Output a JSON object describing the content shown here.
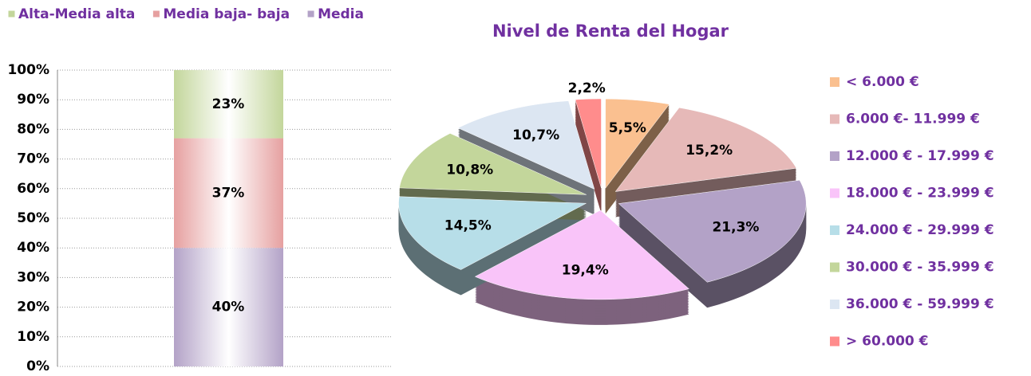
{
  "chart_data": [
    {
      "type": "stacked_bar",
      "series": [
        {
          "name": "Alta-Media alta",
          "color": "#c3d69b",
          "values": [
            23
          ],
          "value_labels": [
            "23%"
          ]
        },
        {
          "name": "Media baja- baja",
          "color": "#e6a0a0",
          "values": [
            37
          ],
          "value_labels": [
            "37%"
          ]
        },
        {
          "name": "Media",
          "color": "#b3a2c7",
          "values": [
            40
          ],
          "value_labels": [
            "40%"
          ]
        }
      ],
      "ylim": [
        0,
        100
      ],
      "yticks": [
        {
          "value": 0,
          "label": "0%"
        },
        {
          "value": 10,
          "label": "10%"
        },
        {
          "value": 20,
          "label": "20%"
        },
        {
          "value": 30,
          "label": "30%"
        },
        {
          "value": 40,
          "label": "40%"
        },
        {
          "value": 50,
          "label": "50%"
        },
        {
          "value": 60,
          "label": "60%"
        },
        {
          "value": 70,
          "label": "70%"
        },
        {
          "value": 80,
          "label": "80%"
        },
        {
          "value": 90,
          "label": "90%"
        },
        {
          "value": 100,
          "label": "100%"
        }
      ],
      "grid": true,
      "legend": "top"
    },
    {
      "type": "pie",
      "title": "Nivel de Renta del Hogar",
      "categories": [
        "< 6.000 €",
        "6.000 €- 11.999 €",
        "12.000 € - 17.999 €",
        " 18.000 € - 23.999 €",
        "24.000 € - 29.999 €",
        "30.000 € - 35.999 €",
        "36.000 € - 59.999 €",
        "> 60.000 €"
      ],
      "values": [
        5.5,
        15.2,
        21.3,
        19.4,
        14.5,
        10.8,
        10.7,
        2.2
      ],
      "value_labels": [
        "5,5%",
        "15,2%",
        "21,3%",
        "19,4%",
        "14,5%",
        "10,8%",
        "10,7%",
        "2,2%"
      ],
      "colors": [
        "#fac090",
        "#e6b9b8",
        "#b3a2c7",
        "#f9c4f9",
        "#b7dee8",
        "#c3d69b",
        "#dce6f2",
        "#ff8c8c"
      ],
      "legend": "right"
    }
  ]
}
